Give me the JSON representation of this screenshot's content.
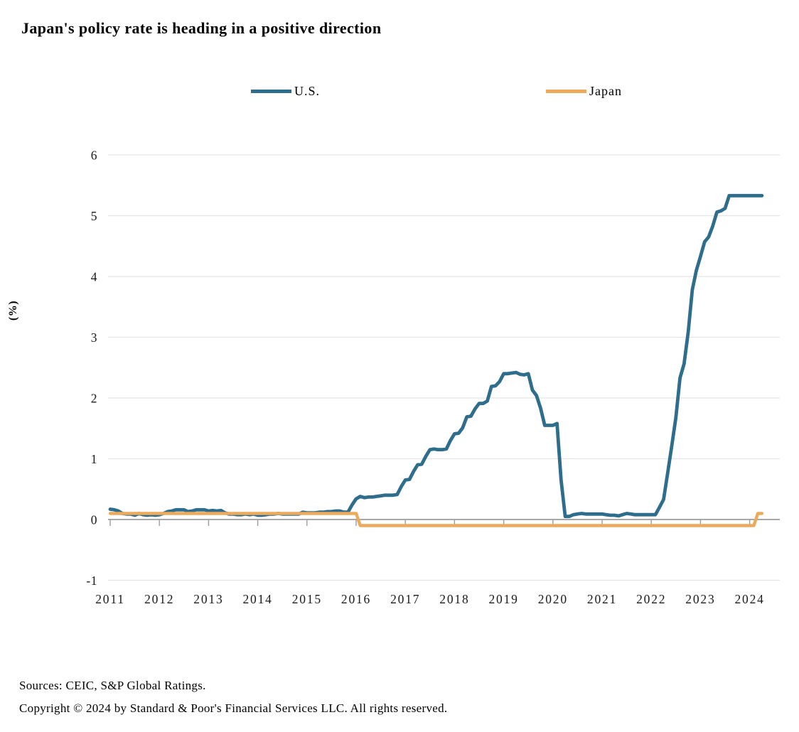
{
  "footer": {
    "sources": "Sources: CEIC, S&P Global Ratings.",
    "copyright": "Copyright © 2024 by Standard & Poor's Financial Services LLC. All rights reserved."
  },
  "chart_data": {
    "type": "line",
    "title": "Japan's policy rate is heading in a positive direction",
    "xlabel": "",
    "ylabel": "(%)",
    "ylim": [
      -1,
      6
    ],
    "yticks": [
      6,
      5,
      4,
      3,
      2,
      1,
      0,
      -1
    ],
    "grid": "horizontal",
    "legend_position": "top",
    "frequency": "monthly",
    "x_start": "2011-01",
    "x_end": "2024-04",
    "x_tick_labels": [
      "2011",
      "2012",
      "2013",
      "2014",
      "2015",
      "2016",
      "2017",
      "2018",
      "2019",
      "2020",
      "2021",
      "2022",
      "2023",
      "2024"
    ],
    "colors": {
      "us_line": "#2f6d8c",
      "japan_line": "#ecaa5c",
      "gridline": "#e5e5e5",
      "zero_axis": "#9c9c9c"
    },
    "series": [
      {
        "name": "U.S.",
        "color": "#2f6d8c",
        "stroke_width": 4.8,
        "values": [
          0.17,
          0.16,
          0.14,
          0.1,
          0.09,
          0.09,
          0.07,
          0.1,
          0.08,
          0.07,
          0.08,
          0.07,
          0.08,
          0.1,
          0.13,
          0.14,
          0.16,
          0.16,
          0.16,
          0.13,
          0.14,
          0.16,
          0.16,
          0.16,
          0.14,
          0.15,
          0.14,
          0.15,
          0.11,
          0.09,
          0.09,
          0.08,
          0.08,
          0.09,
          0.08,
          0.09,
          0.07,
          0.07,
          0.08,
          0.09,
          0.09,
          0.1,
          0.09,
          0.09,
          0.09,
          0.09,
          0.09,
          0.12,
          0.11,
          0.11,
          0.11,
          0.12,
          0.12,
          0.13,
          0.13,
          0.14,
          0.14,
          0.12,
          0.12,
          0.24,
          0.34,
          0.38,
          0.36,
          0.37,
          0.37,
          0.38,
          0.39,
          0.4,
          0.4,
          0.4,
          0.41,
          0.54,
          0.65,
          0.66,
          0.79,
          0.9,
          0.91,
          1.04,
          1.15,
          1.16,
          1.15,
          1.15,
          1.16,
          1.3,
          1.41,
          1.42,
          1.51,
          1.69,
          1.7,
          1.82,
          1.91,
          1.91,
          1.95,
          2.19,
          2.2,
          2.27,
          2.4,
          2.4,
          2.41,
          2.42,
          2.39,
          2.38,
          2.4,
          2.13,
          2.04,
          1.83,
          1.55,
          1.55,
          1.55,
          1.58,
          0.65,
          0.05,
          0.05,
          0.08,
          0.09,
          0.1,
          0.09,
          0.09,
          0.09,
          0.09,
          0.09,
          0.08,
          0.07,
          0.07,
          0.06,
          0.08,
          0.1,
          0.09,
          0.08,
          0.08,
          0.08,
          0.08,
          0.08,
          0.08,
          0.2,
          0.33,
          0.77,
          1.21,
          1.68,
          2.33,
          2.56,
          3.08,
          3.78,
          4.1,
          4.33,
          4.57,
          4.65,
          4.83,
          5.06,
          5.08,
          5.12,
          5.33,
          5.33,
          5.33,
          5.33,
          5.33,
          5.33,
          5.33,
          5.33,
          5.33
        ]
      },
      {
        "name": "Japan",
        "color": "#ecaa5c",
        "stroke_width": 4.4,
        "values": [
          0.1,
          0.1,
          0.1,
          0.1,
          0.1,
          0.1,
          0.1,
          0.1,
          0.1,
          0.1,
          0.1,
          0.1,
          0.1,
          0.1,
          0.1,
          0.1,
          0.1,
          0.1,
          0.1,
          0.1,
          0.1,
          0.1,
          0.1,
          0.1,
          0.1,
          0.1,
          0.1,
          0.1,
          0.1,
          0.1,
          0.1,
          0.1,
          0.1,
          0.1,
          0.1,
          0.1,
          0.1,
          0.1,
          0.1,
          0.1,
          0.1,
          0.1,
          0.1,
          0.1,
          0.1,
          0.1,
          0.1,
          0.1,
          0.1,
          0.1,
          0.1,
          0.1,
          0.1,
          0.1,
          0.1,
          0.1,
          0.1,
          0.1,
          0.1,
          0.1,
          0.1,
          -0.1,
          -0.1,
          -0.1,
          -0.1,
          -0.1,
          -0.1,
          -0.1,
          -0.1,
          -0.1,
          -0.1,
          -0.1,
          -0.1,
          -0.1,
          -0.1,
          -0.1,
          -0.1,
          -0.1,
          -0.1,
          -0.1,
          -0.1,
          -0.1,
          -0.1,
          -0.1,
          -0.1,
          -0.1,
          -0.1,
          -0.1,
          -0.1,
          -0.1,
          -0.1,
          -0.1,
          -0.1,
          -0.1,
          -0.1,
          -0.1,
          -0.1,
          -0.1,
          -0.1,
          -0.1,
          -0.1,
          -0.1,
          -0.1,
          -0.1,
          -0.1,
          -0.1,
          -0.1,
          -0.1,
          -0.1,
          -0.1,
          -0.1,
          -0.1,
          -0.1,
          -0.1,
          -0.1,
          -0.1,
          -0.1,
          -0.1,
          -0.1,
          -0.1,
          -0.1,
          -0.1,
          -0.1,
          -0.1,
          -0.1,
          -0.1,
          -0.1,
          -0.1,
          -0.1,
          -0.1,
          -0.1,
          -0.1,
          -0.1,
          -0.1,
          -0.1,
          -0.1,
          -0.1,
          -0.1,
          -0.1,
          -0.1,
          -0.1,
          -0.1,
          -0.1,
          -0.1,
          -0.1,
          -0.1,
          -0.1,
          -0.1,
          -0.1,
          -0.1,
          -0.1,
          -0.1,
          -0.1,
          -0.1,
          -0.1,
          -0.1,
          -0.1,
          -0.1,
          0.1,
          0.1
        ]
      }
    ]
  }
}
